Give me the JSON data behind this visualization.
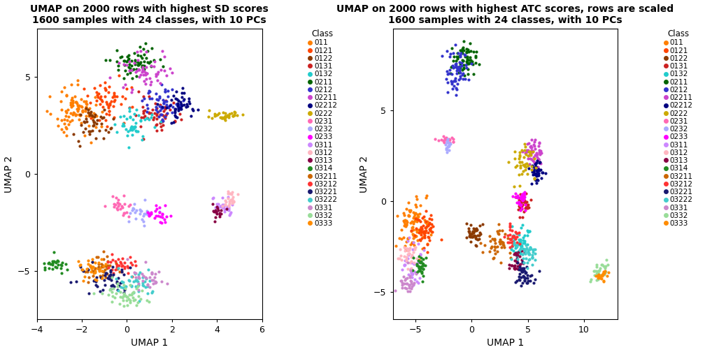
{
  "title1": "UMAP on 2000 rows with highest SD scores\n1600 samples with 24 classes, with 10 PCs",
  "title2": "UMAP on 2000 rows with highest ATC scores, rows are scaled\n1600 samples with 24 classes, with 10 PCs",
  "xlabel": "UMAP 1",
  "ylabel": "UMAP 2",
  "legend_title": "Class",
  "classes": [
    "011",
    "0121",
    "0122",
    "0131",
    "0132",
    "0211",
    "0212",
    "02211",
    "02212",
    "0222",
    "0231",
    "0232",
    "0233",
    "0311",
    "0312",
    "0313",
    "0314",
    "03211",
    "03212",
    "03221",
    "03222",
    "0331",
    "0332",
    "0333"
  ],
  "colors": [
    "#FF7F00",
    "#FF4500",
    "#8B3A00",
    "#CC2222",
    "#22CCCC",
    "#006400",
    "#3333CC",
    "#CC44CC",
    "#000080",
    "#CCAA00",
    "#FF69B4",
    "#AAAAFF",
    "#FF00FF",
    "#CC88FF",
    "#FFB6C1",
    "#880044",
    "#228B22",
    "#CC6600",
    "#FF3333",
    "#191970",
    "#44CCCC",
    "#CC88CC",
    "#99DD99",
    "#FF8C00"
  ],
  "plot1_xlim": [
    -4,
    6
  ],
  "plot1_ylim": [
    -7.5,
    7.5
  ],
  "plot2_xlim": [
    -7,
    13
  ],
  "plot2_ylim": [
    -6.5,
    9.5
  ],
  "plot1_xticks": [
    -4,
    -2,
    0,
    2,
    4,
    6
  ],
  "plot1_yticks": [
    -5,
    0,
    5
  ],
  "plot2_xticks": [
    -5,
    0,
    5,
    10
  ],
  "plot2_yticks": [
    -5,
    0,
    5
  ],
  "markersize": 3.0,
  "background_color": "#FFFFFF",
  "figwidth": 10.08,
  "figheight": 5.04,
  "dpi": 100
}
